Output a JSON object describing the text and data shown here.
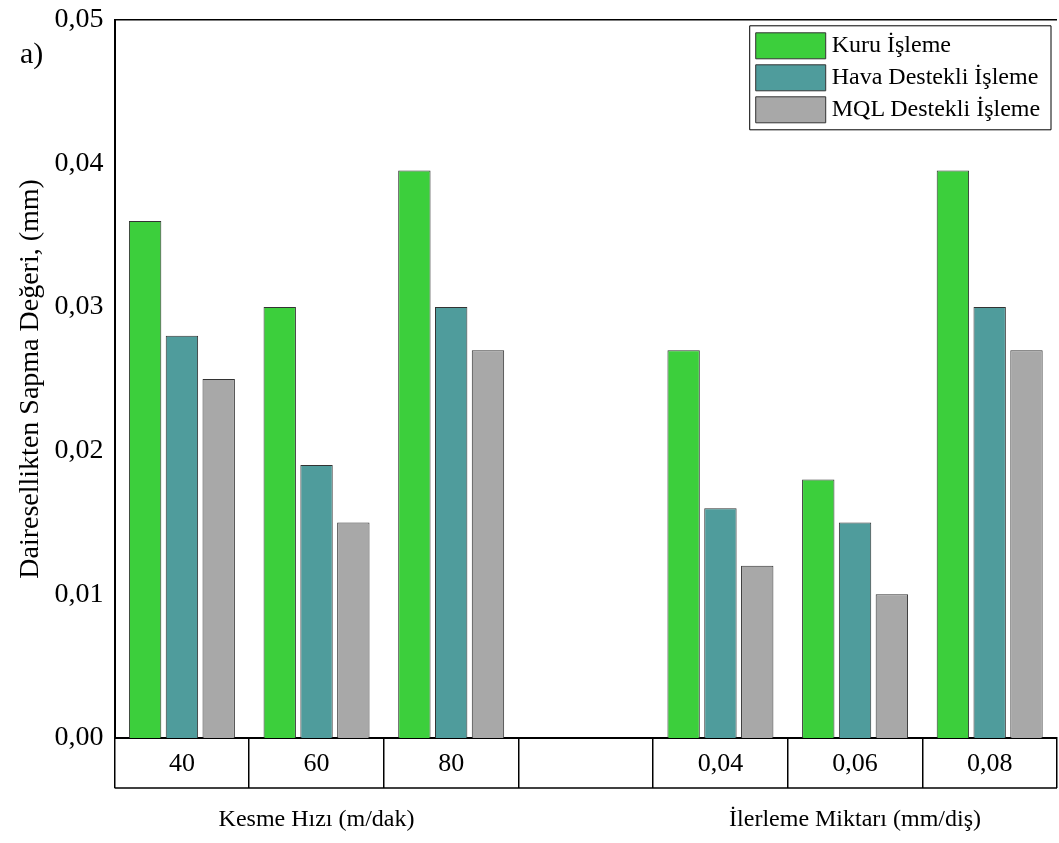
{
  "chart_data": {
    "type": "bar",
    "ylabel": "Dairesellikten Sapma Değeri, (mm)",
    "categories": [
      "40",
      "60",
      "80",
      null,
      "0,04",
      "0,06",
      "0,08"
    ],
    "series": [
      {
        "name": "Kuru İşleme",
        "color": "#3ccf3c",
        "values": [
          0.036,
          0.03,
          0.0395,
          null,
          0.027,
          0.018,
          0.0395
        ]
      },
      {
        "name": "Hava Destekli İşleme",
        "color": "#4f9c9c",
        "values": [
          0.028,
          0.019,
          0.03,
          null,
          0.016,
          0.015,
          0.03
        ]
      },
      {
        "name": "MQL Destekli İşleme",
        "color": "#a8a8a8",
        "values": [
          0.025,
          0.015,
          0.027,
          null,
          0.012,
          0.01,
          0.027
        ]
      }
    ],
    "ylim": [
      0,
      0.05
    ],
    "yticks": [
      {
        "value": 0,
        "label": "0,00"
      },
      {
        "value": 0.01,
        "label": "0,01"
      },
      {
        "value": 0.02,
        "label": "0,02"
      },
      {
        "value": 0.03,
        "label": "0,03"
      },
      {
        "value": 0.04,
        "label": "0,04"
      },
      {
        "value": 0.05,
        "label": "0,05"
      }
    ],
    "annotations": [
      "a)",
      "Kesme Hızı (m/dak)",
      "İlerleme Miktarı (mm/diş)"
    ],
    "legend": "top right",
    "grid": false
  }
}
